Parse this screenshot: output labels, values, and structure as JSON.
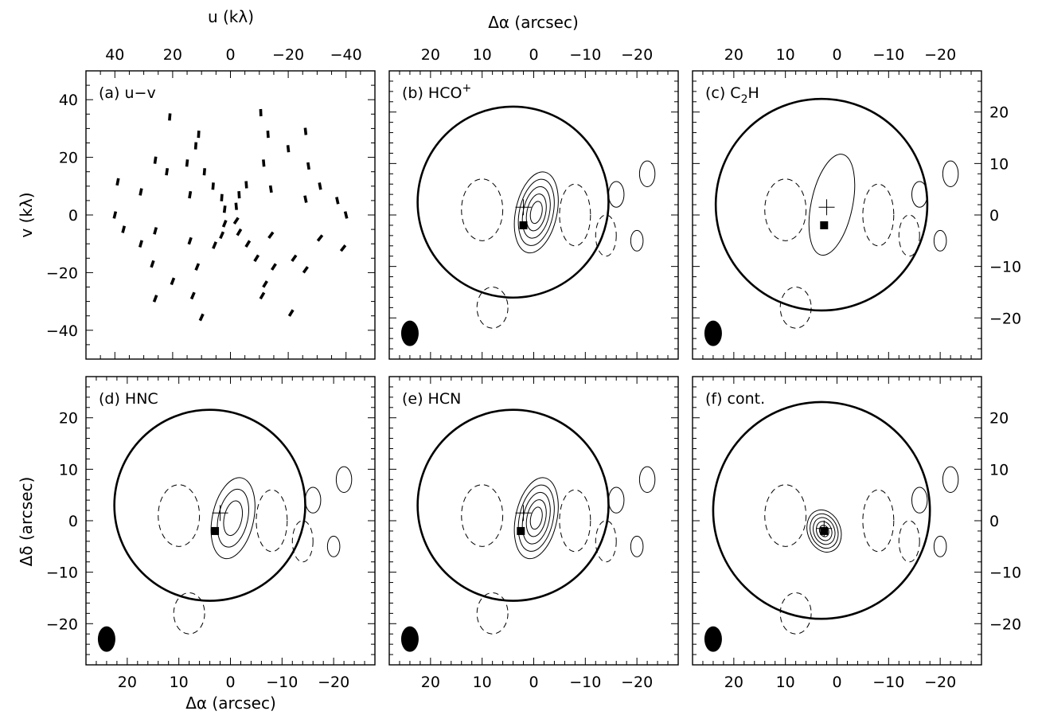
{
  "figure": {
    "top_axis_uv_label": "u (kλ)",
    "top_axis_ra_label": "Δα (arcsec)",
    "left_axis_uv_label": "v (kλ)",
    "left_axis_dec_label": "Δδ (arcsec)",
    "bottom_axis_ra_label": "Δα (arcsec)"
  },
  "chart_data": [
    {
      "panel": "a",
      "type": "scatter",
      "title": "(a) u−v",
      "xlabel": "u (kλ)",
      "ylabel": "v (kλ)",
      "xlim": [
        50,
        -50
      ],
      "ylim": [
        -50,
        50
      ],
      "xticks": [
        -40,
        -20,
        0,
        20,
        40
      ],
      "yticks": [
        -40,
        -20,
        0,
        20,
        40
      ],
      "uv_points": [
        [
          -10.5,
          35.5
        ],
        [
          -26,
          29
        ],
        [
          -11.5,
          18
        ],
        [
          -26,
          5.5
        ],
        [
          -40,
          0
        ],
        [
          -39,
          -11.5
        ],
        [
          -26,
          -19
        ],
        [
          -12,
          -24
        ],
        [
          -21,
          -34
        ],
        [
          -11,
          -28
        ],
        [
          -5.5,
          10.5
        ],
        [
          -3,
          7
        ],
        [
          -2,
          3
        ],
        [
          -2,
          -2
        ],
        [
          -3,
          -6
        ],
        [
          -6,
          -10
        ],
        [
          -13,
          28
        ],
        [
          -20,
          23
        ],
        [
          -27,
          17
        ],
        [
          -31,
          10
        ],
        [
          -37,
          5
        ],
        [
          -31,
          -8
        ],
        [
          -22,
          -15
        ],
        [
          -15,
          -18
        ],
        [
          -9,
          -15
        ],
        [
          -14,
          -7
        ],
        [
          -14,
          9
        ],
        [
          10,
          -35.5
        ],
        [
          26,
          -29
        ],
        [
          11.5,
          -18
        ],
        [
          26,
          -5.5
        ],
        [
          40,
          0
        ],
        [
          39,
          11.5
        ],
        [
          26,
          19
        ],
        [
          12,
          24
        ],
        [
          21,
          34
        ],
        [
          11,
          28
        ],
        [
          5.5,
          -10.5
        ],
        [
          3,
          -7
        ],
        [
          2,
          -3
        ],
        [
          2,
          2
        ],
        [
          3,
          6
        ],
        [
          6,
          10
        ],
        [
          13,
          -28
        ],
        [
          20,
          -23
        ],
        [
          27,
          -17
        ],
        [
          31,
          -10
        ],
        [
          37,
          -5
        ],
        [
          31,
          8
        ],
        [
          22,
          15
        ],
        [
          15,
          18
        ],
        [
          9,
          15
        ],
        [
          14,
          7
        ],
        [
          14,
          -9
        ]
      ]
    },
    {
      "panel": "b",
      "type": "contour",
      "title": "(b) HCO",
      "title_sup": "+",
      "xlabel": "Δα (arcsec)",
      "ylabel": "Δδ (arcsec)",
      "xlim": [
        28,
        -28
      ],
      "ylim": [
        -28,
        28
      ],
      "xticks": [
        20,
        10,
        0,
        -10,
        -20
      ],
      "yticks": [
        20,
        10,
        0,
        -10,
        -20
      ],
      "primary_beam": {
        "ra": 4,
        "dec": 2.5,
        "radius": 18.5
      },
      "peak": {
        "ra": -0.5,
        "dec": 0.5
      },
      "contour_levels": 5,
      "plus_marker": {
        "ra": 2,
        "dec": 1.5
      },
      "square_marker": {
        "ra": 2,
        "dec": -2
      },
      "beam": {
        "ra": 24,
        "dec": -23
      }
    },
    {
      "panel": "c",
      "type": "contour",
      "title": "(c) C",
      "title_sub": "2",
      "title_after": "H",
      "xlabel": "Δα (arcsec)",
      "ylabel": "Δδ (arcsec)",
      "xlim": [
        28,
        -28
      ],
      "ylim": [
        -28,
        28
      ],
      "xticks": [
        20,
        10,
        0,
        -10,
        -20
      ],
      "yticks": [
        20,
        10,
        0,
        -10,
        -20
      ],
      "primary_beam": {
        "ra": 3,
        "dec": 2,
        "radius": 20.5
      },
      "peak": {
        "ra": 1,
        "dec": 2
      },
      "contour_levels": 1,
      "plus_marker": {
        "ra": 2,
        "dec": 1.5
      },
      "square_marker": {
        "ra": 2.5,
        "dec": -2
      },
      "beam": {
        "ra": 24,
        "dec": -23
      }
    },
    {
      "panel": "d",
      "type": "contour",
      "title": "(d) HNC",
      "xlabel": "Δα (arcsec)",
      "ylabel": "Δδ (arcsec)",
      "xlim": [
        28,
        -28
      ],
      "ylim": [
        -28,
        28
      ],
      "xticks": [
        20,
        10,
        0,
        -10,
        -20
      ],
      "yticks": [
        20,
        10,
        0,
        -10,
        -20
      ],
      "primary_beam": {
        "ra": 4,
        "dec": 3,
        "radius": 18.5
      },
      "peak": {
        "ra": -0.5,
        "dec": 0.5
      },
      "contour_levels": 3,
      "plus_marker": {
        "ra": 2,
        "dec": 1.5
      },
      "square_marker": {
        "ra": 3,
        "dec": -2
      },
      "beam": {
        "ra": 24,
        "dec": -23
      }
    },
    {
      "panel": "e",
      "type": "contour",
      "title": "(e) HCN",
      "xlabel": "Δα (arcsec)",
      "ylabel": "Δδ (arcsec)",
      "xlim": [
        28,
        -28
      ],
      "ylim": [
        -28,
        28
      ],
      "xticks": [
        20,
        10,
        0,
        -10,
        -20
      ],
      "yticks": [
        20,
        10,
        0,
        -10,
        -20
      ],
      "primary_beam": {
        "ra": 4,
        "dec": 3,
        "radius": 18.5
      },
      "peak": {
        "ra": -0.5,
        "dec": 0.5
      },
      "contour_levels": 5,
      "plus_marker": {
        "ra": 2,
        "dec": 1.5
      },
      "square_marker": {
        "ra": 2.5,
        "dec": -2
      },
      "beam": {
        "ra": 24,
        "dec": -23
      }
    },
    {
      "panel": "f",
      "type": "contour",
      "title": "(f) cont.",
      "xlabel": "Δα (arcsec)",
      "ylabel": "Δδ (arcsec)",
      "xlim": [
        28,
        -28
      ],
      "ylim": [
        -28,
        28
      ],
      "xticks": [
        20,
        10,
        0,
        -10,
        -20
      ],
      "yticks": [
        20,
        10,
        0,
        -10,
        -20
      ],
      "primary_beam": {
        "ra": 3,
        "dec": 2,
        "radius": 21
      },
      "peak": {
        "ra": 2.5,
        "dec": -2
      },
      "contour_levels": 5,
      "plus_marker": {
        "ra": 2.5,
        "dec": -1.5
      },
      "square_marker": {
        "ra": 2.5,
        "dec": -2
      },
      "beam": {
        "ra": 24,
        "dec": -23
      }
    }
  ]
}
